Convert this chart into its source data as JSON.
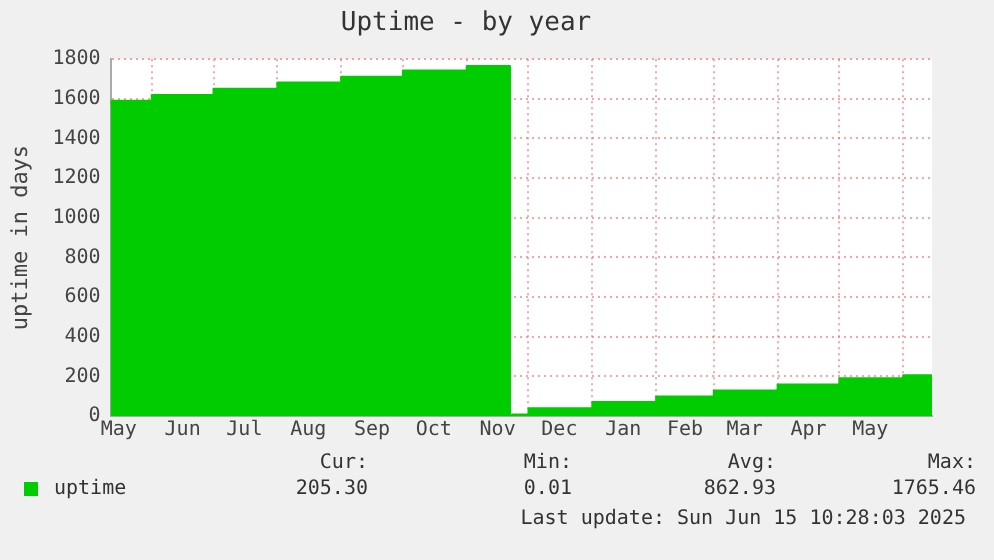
{
  "chart_data": {
    "type": "area",
    "title": "Uptime - by year",
    "ylabel": "uptime in days",
    "x": [
      "2024-05-12",
      "2024-06-01",
      "2024-07-01",
      "2024-08-01",
      "2024-09-01",
      "2024-10-01",
      "2024-11-01",
      "2024-11-22",
      "2024-11-23",
      "2024-12-01",
      "2025-01-01",
      "2025-02-01",
      "2025-03-01",
      "2025-04-01",
      "2025-05-01",
      "2025-06-01",
      "2025-06-15"
    ],
    "series": [
      {
        "name": "uptime",
        "color": "#00cc00",
        "values": [
          1570,
          1590,
          1620,
          1651,
          1682,
          1712,
          1743,
          1765.46,
          0.01,
          8,
          39,
          70,
          98,
          129,
          159,
          190,
          205.3
        ]
      }
    ],
    "xlim": [
      "2024-05-12",
      "2025-06-15"
    ],
    "xticks": [
      {
        "value": "2024-05-16",
        "label": "May"
      },
      {
        "value": "2024-06-01",
        "label": null
      },
      {
        "value": "2024-06-16",
        "label": "Jun"
      },
      {
        "value": "2024-07-01",
        "label": null
      },
      {
        "value": "2024-07-16",
        "label": "Jul"
      },
      {
        "value": "2024-08-01",
        "label": null
      },
      {
        "value": "2024-08-16",
        "label": "Aug"
      },
      {
        "value": "2024-09-01",
        "label": null
      },
      {
        "value": "2024-09-16",
        "label": "Sep"
      },
      {
        "value": "2024-10-01",
        "label": null
      },
      {
        "value": "2024-10-16",
        "label": "Oct"
      },
      {
        "value": "2024-11-01",
        "label": null
      },
      {
        "value": "2024-11-16",
        "label": "Nov"
      },
      {
        "value": "2024-12-01",
        "label": null
      },
      {
        "value": "2024-12-16",
        "label": "Dec"
      },
      {
        "value": "2025-01-01",
        "label": null
      },
      {
        "value": "2025-01-16",
        "label": "Jan"
      },
      {
        "value": "2025-02-01",
        "label": null
      },
      {
        "value": "2025-02-15",
        "label": "Feb"
      },
      {
        "value": "2025-03-01",
        "label": null
      },
      {
        "value": "2025-03-16",
        "label": "Mar"
      },
      {
        "value": "2025-04-01",
        "label": null
      },
      {
        "value": "2025-04-16",
        "label": "Apr"
      },
      {
        "value": "2025-05-01",
        "label": null
      },
      {
        "value": "2025-05-16",
        "label": "May"
      },
      {
        "value": "2025-06-01",
        "label": null
      }
    ],
    "ylim": [
      0,
      1800
    ],
    "yticks": [
      0,
      200,
      400,
      600,
      800,
      1000,
      1200,
      1400,
      1600,
      1800
    ],
    "grid": true,
    "legend": "bottom left",
    "line_style": "solid",
    "annotations": [
      "Cur:",
      "Min:",
      "Avg:",
      "Max:",
      "205.30",
      "0.01",
      "862.93",
      "1765.46",
      "Last update: Sun Jun 15 10:28:03 2025"
    ]
  }
}
